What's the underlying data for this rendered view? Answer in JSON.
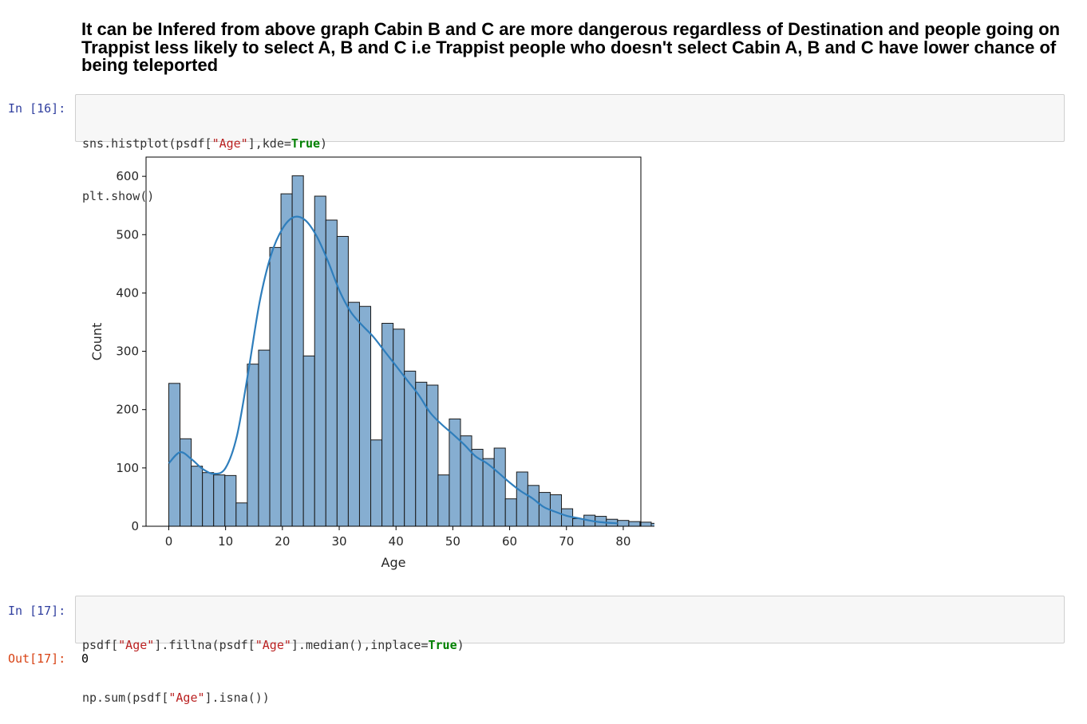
{
  "markdown": {
    "heading": "It can be Infered from above graph Cabin B and C are more dangerous regardless of Destination and people going on Trappist less likely to select A, B and C i.e Trappist people who doesn't select Cabin A, B and C have lower chance of being teleported"
  },
  "cell16": {
    "prompt": "In [16]:",
    "line1": {
      "a": "sns.histplot(psdf[",
      "b": "\"Age\"",
      "c": "],kde=",
      "d": "True",
      "e": ")"
    },
    "line2": "plt.show()"
  },
  "cell17": {
    "prompt": "In [17]:",
    "line1": {
      "a": "psdf[",
      "b": "\"Age\"",
      "c": "].fillna(psdf[",
      "d": "\"Age\"",
      "e": "].median(),inplace=",
      "f": "True",
      "g": ")"
    },
    "line2": {
      "a": "np.sum(psdf[",
      "b": "\"Age\"",
      "c": "].isna())"
    },
    "out_prompt": "Out[17]:",
    "output": "0"
  },
  "colors": {
    "bar_fill": "#86aed1",
    "bar_edge": "#1a1a1a",
    "kde_line": "#2f7ebc",
    "prompt_in": "#303f9f",
    "prompt_out": "#d84315"
  },
  "chart_data": {
    "type": "bar",
    "xlabel": "Age",
    "ylabel": "Count",
    "xlim": [
      -4.0,
      83.1
    ],
    "ylim": [
      0,
      633
    ],
    "xticks": [
      0,
      10,
      20,
      30,
      40,
      50,
      60,
      70,
      80
    ],
    "yticks": [
      0,
      100,
      200,
      300,
      400,
      500,
      600
    ],
    "bin_start": 0,
    "bin_width": 1.975,
    "counts": [
      245,
      150,
      103,
      92,
      88,
      87,
      40,
      278,
      302,
      478,
      570,
      601,
      292,
      566,
      525,
      497,
      384,
      377,
      148,
      348,
      338,
      266,
      247,
      242,
      88,
      184,
      155,
      132,
      116,
      134,
      47,
      93,
      70,
      58,
      54,
      30,
      13,
      19,
      17,
      12,
      10,
      8,
      7,
      5,
      3
    ],
    "kde": {
      "x": [
        0,
        2,
        4,
        6,
        8,
        10,
        12,
        14,
        16,
        18,
        20,
        22,
        24,
        26,
        28,
        30,
        32,
        34,
        36,
        38,
        40,
        42,
        44,
        46,
        48,
        50,
        52,
        54,
        56,
        58,
        60,
        62,
        64,
        66,
        68,
        70,
        72,
        74,
        76,
        79
      ],
      "y": [
        108,
        127,
        115,
        98,
        90,
        100,
        155,
        265,
        385,
        465,
        510,
        530,
        525,
        498,
        455,
        405,
        368,
        345,
        325,
        300,
        275,
        250,
        225,
        195,
        175,
        158,
        140,
        120,
        108,
        92,
        75,
        60,
        48,
        33,
        25,
        18,
        14,
        10,
        7,
        5
      ]
    }
  }
}
